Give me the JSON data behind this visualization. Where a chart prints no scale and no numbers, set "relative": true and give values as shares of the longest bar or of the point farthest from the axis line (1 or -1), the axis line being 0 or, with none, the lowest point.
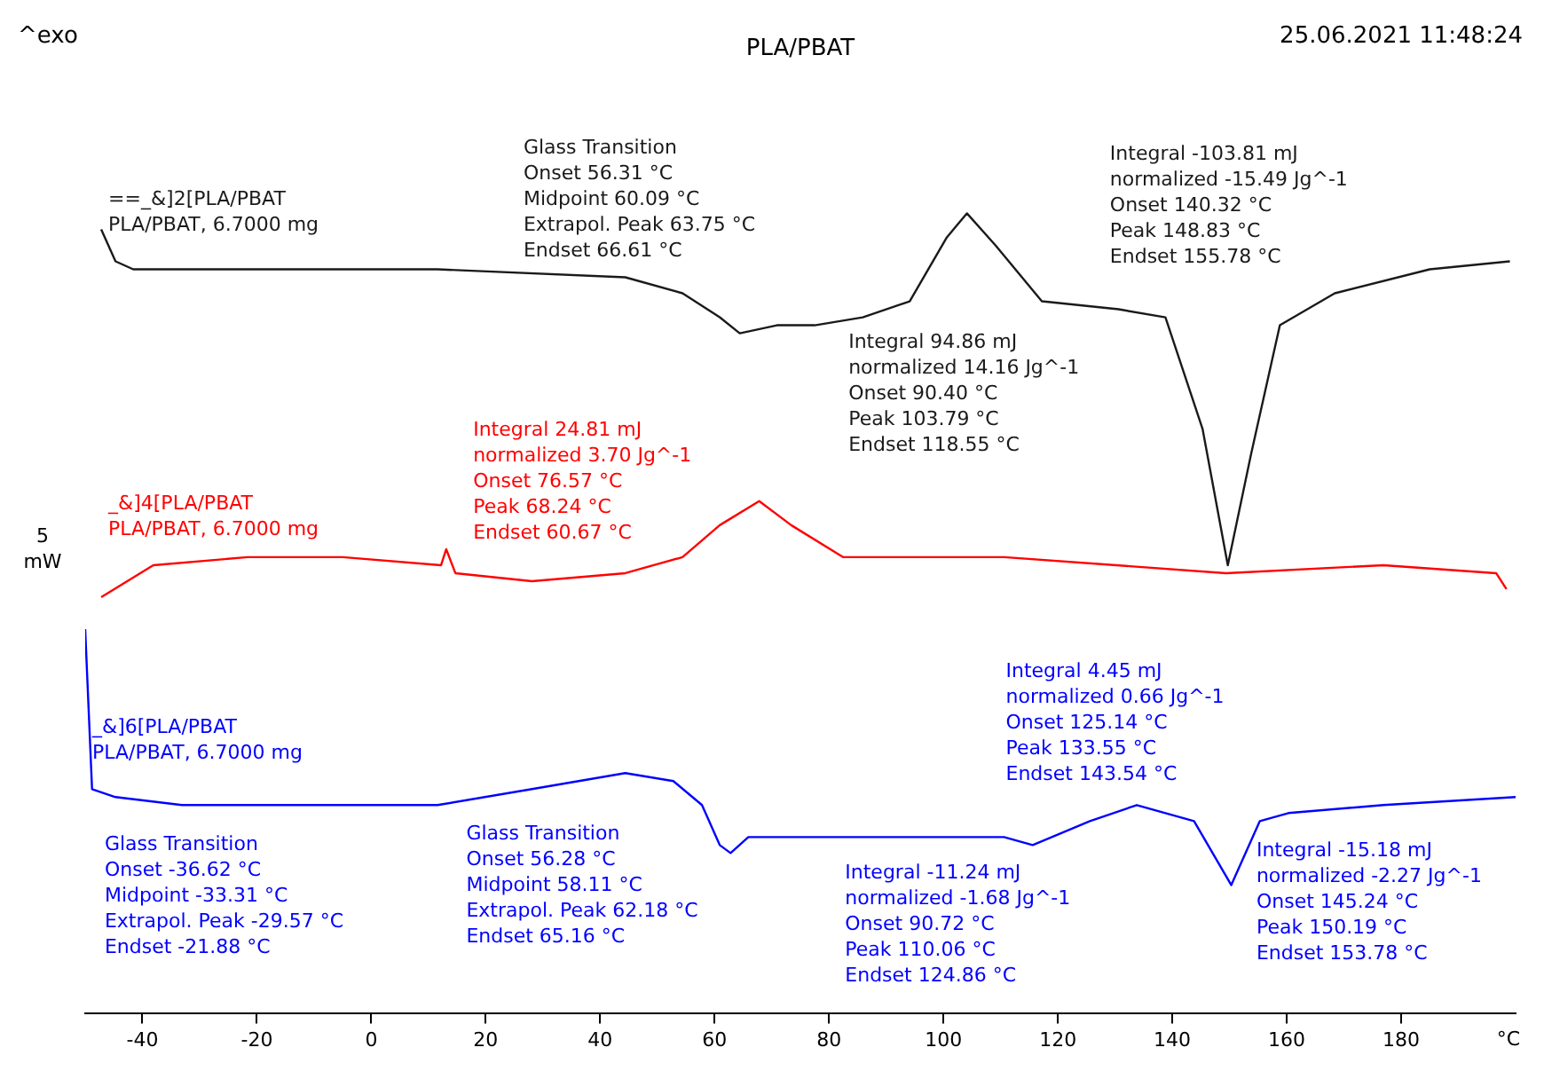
{
  "chart_data": {
    "type": "line",
    "title": "PLA/PBAT",
    "xlabel": "°C",
    "ylabel": "5 mW",
    "relative": true,
    "xlim": [
      -50,
      200
    ],
    "xticks": [
      -40,
      -20,
      0,
      20,
      40,
      60,
      80,
      100,
      120,
      140,
      160,
      180
    ],
    "grid": false,
    "legend": false,
    "marker": "none",
    "line_style": "solid",
    "series": [
      {
        "name": "==_&]2[PLA/PBAT\nPLA/PBAT, 6.7000 mg",
        "color": "#1a1a1a",
        "x": [
          -47.2,
          -44.7,
          -41.6,
          -21.6,
          11.6,
          44.4,
          54.4,
          60.9,
          64.4,
          70.9,
          77.5,
          85.9,
          94.1,
          100.6,
          104.1,
          109.1,
          117.2,
          130.6,
          138.8,
          145.3,
          149.7,
          153.8,
          158.8,
          168.4,
          185,
          199
        ],
        "values": [
          0.98,
          0.94,
          0.93,
          0.93,
          0.93,
          0.92,
          0.9,
          0.87,
          0.85,
          0.86,
          0.86,
          0.87,
          0.89,
          0.97,
          1,
          0.96,
          0.89,
          0.88,
          0.87,
          0.73,
          0.56,
          0.7,
          0.86,
          0.9,
          0.93,
          0.94
        ]
      },
      {
        "name": "_&]4[PLA/PBAT\nPLA/PBAT, 6.7000 mg",
        "color": "#ff0000",
        "x": [
          -47.2,
          -38.1,
          -21.6,
          -5,
          12.2,
          13.1,
          14.7,
          28.1,
          44.4,
          54.4,
          60.9,
          67.8,
          73.4,
          82.5,
          110.6,
          149.4,
          176.9,
          196.6,
          198.4
        ],
        "values": [
          0.52,
          0.56,
          0.57,
          0.57,
          0.56,
          0.58,
          0.55,
          0.54,
          0.55,
          0.57,
          0.61,
          0.64,
          0.61,
          0.57,
          0.57,
          0.55,
          0.56,
          0.55,
          0.53
        ]
      },
      {
        "name": "_&]6[PLA/PBAT\nPLA/PBAT, 6.7000 mg",
        "color": "#0000ff",
        "x": [
          -50,
          -48.8,
          -44.7,
          -33.1,
          -21.6,
          -5,
          11.6,
          28.1,
          44.4,
          52.8,
          57.8,
          60.9,
          62.8,
          65.9,
          77.5,
          94.1,
          110.6,
          115.6,
          125.6,
          133.8,
          143.8,
          150.3,
          155.3,
          160.3,
          176.9,
          200
        ],
        "values": [
          0.48,
          0.28,
          0.27,
          0.26,
          0.26,
          0.26,
          0.26,
          0.28,
          0.3,
          0.29,
          0.26,
          0.21,
          0.2,
          0.22,
          0.22,
          0.22,
          0.22,
          0.21,
          0.24,
          0.26,
          0.24,
          0.16,
          0.24,
          0.25,
          0.26,
          0.27
        ]
      }
    ],
    "annotations": [
      "^exo",
      "25.06.2021 11:48:24",
      "Glass Transition",
      "Onset 56.31 °C",
      "Midpoint 60.09 °C",
      "Extrapol. Peak 63.75 °C",
      "Endset 66.61 °C",
      "Integral -103.81 mJ",
      "normalized -15.49 Jg^-1",
      "Onset 140.32 °C",
      "Peak 148.83 °C",
      "Endset 155.78 °C",
      "Integral 94.86 mJ",
      "normalized 14.16 Jg^-1",
      "Onset 90.40 °C",
      "Peak 103.79 °C",
      "Endset 118.55 °C",
      "Integral 24.81 mJ",
      "normalized 3.70 Jg^-1",
      "Onset 76.57 °C",
      "Peak 68.24 °C",
      "Endset 60.67 °C",
      "Integral 4.45 mJ",
      "normalized 0.66 Jg^-1",
      "Onset 125.14 °C",
      "Peak 133.55 °C",
      "Endset 143.54 °C",
      "Glass Transition",
      "Onset -36.62 °C",
      "Midpoint -33.31 °C",
      "Extrapol. Peak -29.57 °C",
      "Endset -21.88 °C",
      "Glass Transition",
      "Onset 56.28 °C",
      "Midpoint 58.11 °C",
      "Extrapol. Peak 62.18 °C",
      "Endset 65.16 °C",
      "Integral -11.24 mJ",
      "normalized -1.68 Jg^-1",
      "Onset 90.72 °C",
      "Peak 110.06 °C",
      "Endset 124.86 °C",
      "Integral -15.18 mJ",
      "normalized -2.27 Jg^-1",
      "Onset 145.24 °C",
      "Peak 150.19 °C",
      "Endset 153.78 °C"
    ]
  }
}
